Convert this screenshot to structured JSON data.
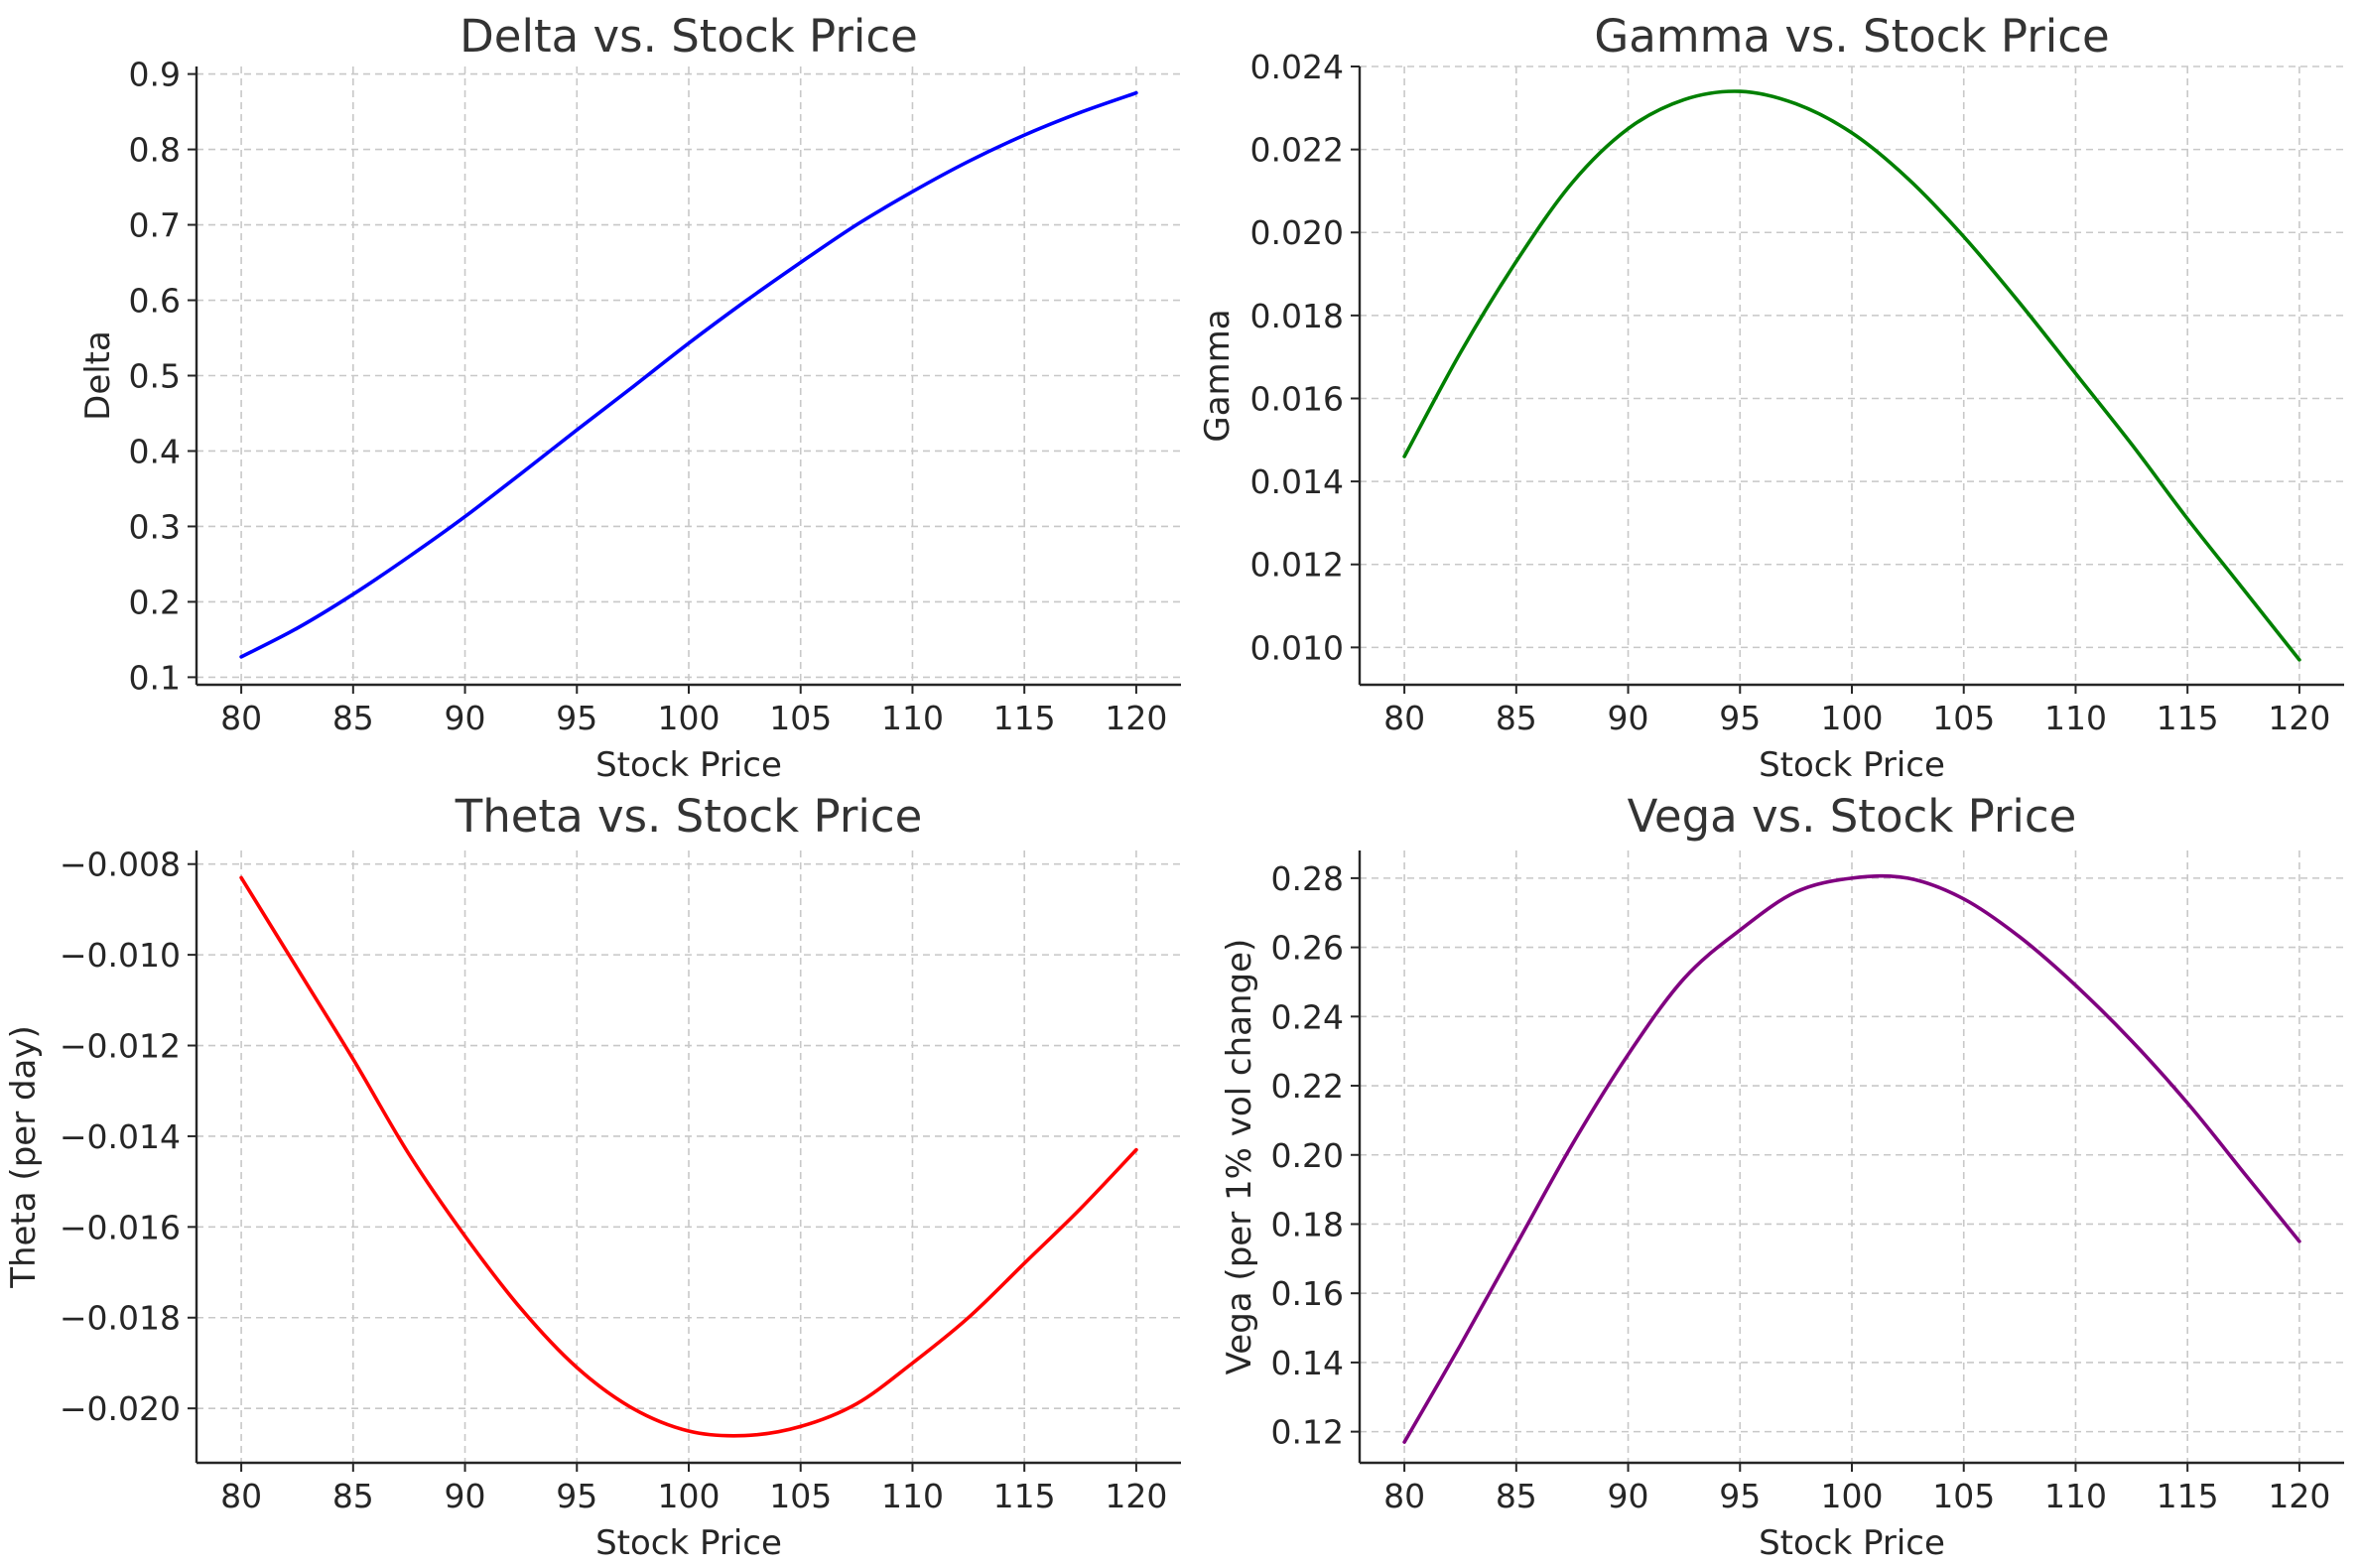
{
  "chart_data": [
    {
      "type": "line",
      "title": "Delta vs. Stock Price",
      "xlabel": "Stock Price",
      "ylabel": "Delta",
      "xlim": [
        78,
        122
      ],
      "ylim": [
        0.09,
        0.91
      ],
      "xticks": [
        80,
        85,
        90,
        95,
        100,
        105,
        110,
        115,
        120
      ],
      "xtick_labels": [
        "80",
        "85",
        "90",
        "95",
        "100",
        "105",
        "110",
        "115",
        "120"
      ],
      "yticks": [
        0.1,
        0.2,
        0.3,
        0.4,
        0.5,
        0.6,
        0.7,
        0.8,
        0.9
      ],
      "ytick_labels": [
        "0.1",
        "0.2",
        "0.3",
        "0.4",
        "0.5",
        "0.6",
        "0.7",
        "0.8",
        "0.9"
      ],
      "grid": true,
      "color": "#0000ff",
      "series": [
        {
          "x": [
            80,
            82.5,
            85,
            87.5,
            90,
            92.5,
            95,
            97.5,
            100,
            102.5,
            105,
            107.5,
            110,
            112.5,
            115,
            117.5,
            120
          ],
          "y": [
            0.127,
            0.165,
            0.21,
            0.26,
            0.313,
            0.37,
            0.428,
            0.485,
            0.543,
            0.598,
            0.65,
            0.7,
            0.744,
            0.784,
            0.819,
            0.849,
            0.875
          ]
        }
      ]
    },
    {
      "type": "line",
      "title": "Gamma vs. Stock Price",
      "xlabel": "Stock Price",
      "ylabel": "Gamma",
      "xlim": [
        78,
        122
      ],
      "ylim": [
        0.0091,
        0.024
      ],
      "xticks": [
        80,
        85,
        90,
        95,
        100,
        105,
        110,
        115,
        120
      ],
      "xtick_labels": [
        "80",
        "85",
        "90",
        "95",
        "100",
        "105",
        "110",
        "115",
        "120"
      ],
      "yticks": [
        0.01,
        0.012,
        0.014,
        0.016,
        0.018,
        0.02,
        0.022,
        0.024
      ],
      "ytick_labels": [
        "0.010",
        "0.012",
        "0.014",
        "0.016",
        "0.018",
        "0.020",
        "0.022",
        "0.024"
      ],
      "grid": true,
      "color": "#008000",
      "series": [
        {
          "x": [
            80,
            82.5,
            85,
            87.5,
            90,
            92.5,
            95,
            97.5,
            100,
            102.5,
            105,
            107.5,
            110,
            112.5,
            115,
            117.5,
            120
          ],
          "y": [
            0.0146,
            0.0171,
            0.0193,
            0.0212,
            0.0225,
            0.0232,
            0.0234,
            0.0231,
            0.0224,
            0.0213,
            0.0199,
            0.0183,
            0.0166,
            0.0149,
            0.0131,
            0.0114,
            0.0097
          ]
        }
      ]
    },
    {
      "type": "line",
      "title": "Theta vs. Stock Price",
      "xlabel": "Stock Price",
      "ylabel": "Theta (per day)",
      "xlim": [
        78,
        122
      ],
      "ylim": [
        -0.0212,
        -0.0077
      ],
      "xticks": [
        80,
        85,
        90,
        95,
        100,
        105,
        110,
        115,
        120
      ],
      "xtick_labels": [
        "80",
        "85",
        "90",
        "95",
        "100",
        "105",
        "110",
        "115",
        "120"
      ],
      "yticks": [
        -0.02,
        -0.018,
        -0.016,
        -0.014,
        -0.012,
        -0.01,
        -0.008
      ],
      "ytick_labels": [
        "−0.020",
        "−0.018",
        "−0.016",
        "−0.014",
        "−0.012",
        "−0.010",
        "−0.008"
      ],
      "grid": true,
      "color": "#ff0000",
      "series": [
        {
          "x": [
            80,
            82.5,
            85,
            87.5,
            90,
            92.5,
            95,
            97.5,
            100,
            102.5,
            105,
            107.5,
            110,
            112.5,
            115,
            117.5,
            120
          ],
          "y": [
            -0.0083,
            -0.0103,
            -0.0123,
            -0.0144,
            -0.0162,
            -0.0178,
            -0.0191,
            -0.02,
            -0.0205,
            -0.0206,
            -0.0204,
            -0.0199,
            -0.019,
            -0.018,
            -0.0168,
            -0.0156,
            -0.0143
          ]
        }
      ]
    },
    {
      "type": "line",
      "title": "Vega vs. Stock Price",
      "xlabel": "Stock Price",
      "ylabel": "Vega (per 1% vol change)",
      "xlim": [
        78,
        122
      ],
      "ylim": [
        0.111,
        0.288
      ],
      "xticks": [
        80,
        85,
        90,
        95,
        100,
        105,
        110,
        115,
        120
      ],
      "xtick_labels": [
        "80",
        "85",
        "90",
        "95",
        "100",
        "105",
        "110",
        "115",
        "120"
      ],
      "yticks": [
        0.12,
        0.14,
        0.16,
        0.18,
        0.2,
        0.22,
        0.24,
        0.26,
        0.28
      ],
      "ytick_labels": [
        "0.12",
        "0.14",
        "0.16",
        "0.18",
        "0.20",
        "0.22",
        "0.24",
        "0.26",
        "0.28"
      ],
      "grid": true,
      "color": "#800080",
      "series": [
        {
          "x": [
            80,
            82.5,
            85,
            87.5,
            90,
            92.5,
            95,
            97.5,
            100,
            102.5,
            105,
            107.5,
            110,
            112.5,
            115,
            117.5,
            120
          ],
          "y": [
            0.117,
            0.145,
            0.174,
            0.203,
            0.229,
            0.251,
            0.265,
            0.276,
            0.28,
            0.28,
            0.274,
            0.263,
            0.249,
            0.233,
            0.215,
            0.195,
            0.175
          ]
        }
      ]
    }
  ]
}
